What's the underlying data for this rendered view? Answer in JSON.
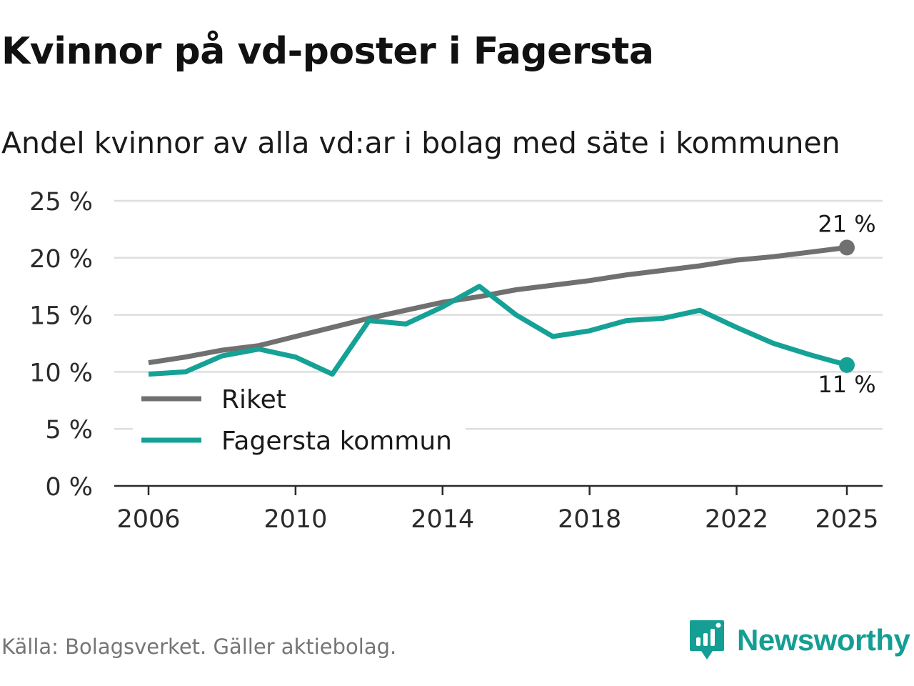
{
  "title": "Kvinnor på vd-poster i Fagersta",
  "subtitle": "Andel kvinnor av alla vd:ar i bolag med säte i kommunen",
  "source": "Källa: Bolagsverket. Gäller aktiebolag.",
  "brand": {
    "name": "Newsworthy",
    "logo_icon": "newsworthy-logo-icon",
    "color": "#159e93"
  },
  "chart_data": {
    "type": "line",
    "title": "Kvinnor på vd-poster i Fagersta",
    "subtitle": "Andel kvinnor av alla vd:ar i bolag med säte i kommunen",
    "xlabel": "",
    "ylabel": "",
    "x": [
      2006,
      2007,
      2008,
      2009,
      2010,
      2011,
      2012,
      2013,
      2014,
      2015,
      2016,
      2017,
      2018,
      2019,
      2020,
      2021,
      2022,
      2023,
      2024,
      2025
    ],
    "xlim": [
      2006,
      2025
    ],
    "ylim": [
      0,
      25
    ],
    "x_ticks": [
      "2006",
      "2010",
      "2014",
      "2018",
      "2022",
      "2025"
    ],
    "y_ticks": [
      "0 %",
      "5 %",
      "10 %",
      "15 %",
      "20 %",
      "25 %"
    ],
    "grid": true,
    "legend_position": "bottom-left",
    "series": [
      {
        "name": "Riket",
        "color": "#707070",
        "values": [
          10.8,
          11.3,
          11.9,
          12.3,
          13.1,
          13.9,
          14.7,
          15.4,
          16.1,
          16.6,
          17.2,
          17.6,
          18.0,
          18.5,
          18.9,
          19.3,
          19.8,
          20.1,
          20.5,
          20.9
        ],
        "end_label": "21 %"
      },
      {
        "name": "Fagersta kommun",
        "color": "#15a196",
        "values": [
          9.8,
          10.0,
          11.4,
          12.0,
          11.3,
          9.8,
          14.5,
          14.2,
          15.7,
          17.5,
          15.0,
          13.1,
          13.6,
          14.5,
          14.7,
          15.4,
          13.9,
          12.5,
          11.5,
          10.6
        ],
        "end_label": "11 %"
      }
    ]
  }
}
